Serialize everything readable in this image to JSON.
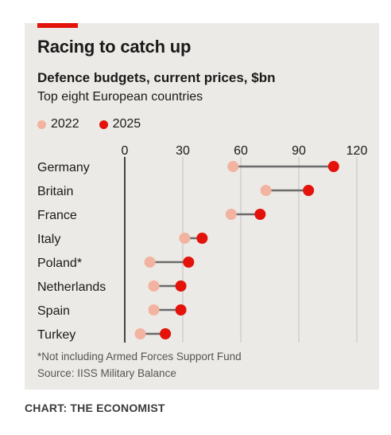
{
  "header": {
    "title": "Racing to catch up",
    "subtitle": "Defence budgets, current prices, $bn",
    "description": "Top eight European countries"
  },
  "legend": [
    {
      "label": "2022",
      "color": "#f2b3a0"
    },
    {
      "label": "2025",
      "color": "#e3120b"
    }
  ],
  "chart_data": {
    "type": "dot-range",
    "title": "Racing to catch up",
    "subtitle": "Defence budgets, current prices, $bn",
    "xlim": [
      0,
      120
    ],
    "x_ticks": [
      "0",
      "30",
      "60",
      "90",
      "120"
    ],
    "legend_position": "top-left",
    "grid": true,
    "categories": [
      "Germany",
      "Britain",
      "France",
      "Italy",
      "Poland*",
      "Netherlands",
      "Spain",
      "Turkey"
    ],
    "series": [
      {
        "name": "2022",
        "color": "#f2b3a0",
        "values": [
          56,
          73,
          55,
          31,
          13,
          15,
          15,
          8
        ]
      },
      {
        "name": "2025",
        "color": "#e3120b",
        "values": [
          108,
          95,
          70,
          40,
          33,
          29,
          29,
          21
        ]
      }
    ]
  },
  "footer": {
    "footnote": "*Not including Armed Forces Support Fund",
    "source": "Source: IISS Military Balance",
    "credit": "CHART: THE ECONOMIST"
  }
}
